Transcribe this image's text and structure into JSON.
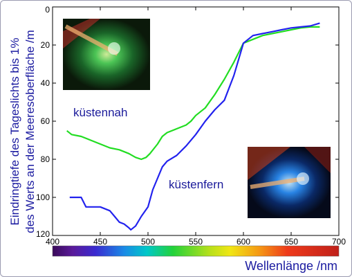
{
  "chart_data": {
    "type": "line",
    "title": "",
    "xlabel": "Wellenlänge /nm",
    "ylabel_line1": "Eindringtiefe des Tageslichts bis 1%",
    "ylabel_line2": "des Werts an der Meeresoberfläche /m",
    "xlim": [
      400,
      700
    ],
    "ylim": [
      120,
      0
    ],
    "y_inverted": true,
    "grid": false,
    "x_ticks": [
      400,
      450,
      500,
      550,
      600,
      650,
      700
    ],
    "y_ticks": [
      0,
      20,
      40,
      60,
      80,
      100,
      120
    ],
    "x_tick_labels": [
      "400",
      "450",
      "500",
      "550",
      "600",
      "650",
      "700"
    ],
    "y_tick_labels": [
      "0",
      "20",
      "40",
      "60",
      "80",
      "100",
      "120"
    ],
    "colorbar": "visible spectrum 400–700 nm",
    "series": [
      {
        "name": "küstennah",
        "color": "#22dd22",
        "x": [
          415,
          420,
          430,
          440,
          450,
          460,
          470,
          480,
          487,
          493,
          498,
          502,
          510,
          515,
          520,
          530,
          540,
          545,
          550,
          560,
          570,
          575,
          580,
          590,
          600,
          610,
          620,
          630,
          640,
          650,
          660,
          670,
          680
        ],
        "y": [
          65,
          67,
          68,
          70,
          72,
          74,
          75,
          77,
          79,
          80,
          79,
          77,
          72,
          68,
          66,
          64,
          62,
          60,
          57,
          53,
          46,
          42,
          38,
          29,
          19,
          17,
          15,
          14,
          13,
          12,
          11,
          10.5,
          10.5
        ]
      },
      {
        "name": "küstenfern",
        "color": "#2222ee",
        "x": [
          418,
          430,
          435,
          445,
          450,
          460,
          465,
          470,
          475,
          480,
          482,
          487,
          493,
          500,
          505,
          510,
          515,
          520,
          530,
          540,
          550,
          560,
          570,
          580,
          590,
          600,
          610,
          620,
          630,
          640,
          650,
          660,
          670,
          680
        ],
        "y": [
          100,
          100,
          105,
          105,
          105,
          107,
          110,
          113,
          114,
          116,
          117,
          115,
          110,
          105,
          96,
          90,
          84,
          81,
          78,
          73,
          67,
          60,
          54,
          49,
          36,
          19,
          15,
          14,
          13,
          12,
          11,
          10.5,
          10,
          8.5
        ]
      }
    ]
  }
}
